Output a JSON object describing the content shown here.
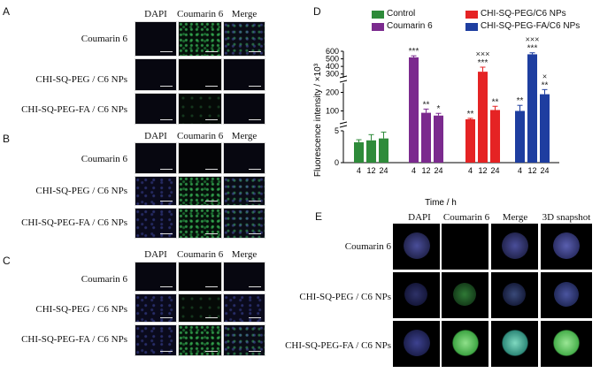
{
  "panels": {
    "A": {
      "letter": "A"
    },
    "B": {
      "letter": "B"
    },
    "C": {
      "letter": "C"
    },
    "D": {
      "letter": "D"
    },
    "E": {
      "letter": "E"
    }
  },
  "micro": {
    "col_headers": [
      "DAPI",
      "Coumarin 6",
      "Merge"
    ],
    "row_labels": [
      "Coumarin 6",
      "CHI-SQ-PEG / C6 NPs",
      "CHI-SQ-PEG-FA / C6 NPs"
    ]
  },
  "spheroid": {
    "col_headers": [
      "DAPI",
      "Coumarin 6",
      "Merge",
      "3D snapshot"
    ],
    "row_labels": [
      "Coumarin 6",
      "CHI-SQ-PEG / C6 NPs",
      "CHI-SQ-PEG-FA / C6 NPs"
    ]
  },
  "chart_data": {
    "type": "bar",
    "ylabel": "Fluorescence intensity / ×10³",
    "xlabel": "Time / h",
    "categories": [
      "4",
      "12",
      "24"
    ],
    "series": [
      {
        "name": "Control",
        "color": "#2e8b3a",
        "values": [
          3.2,
          3.5,
          3.8
        ],
        "errors": [
          0.4,
          0.9,
          1.0
        ],
        "sig": [
          "",
          "",
          ""
        ]
      },
      {
        "name": "Coumarin 6",
        "color": "#7b2a8e",
        "values": [
          520,
          90,
          75
        ],
        "errors": [
          20,
          20,
          12
        ],
        "sig": [
          "***",
          "**",
          "*"
        ]
      },
      {
        "name": "CHI-SQ-PEG/C6 NPs",
        "color": "#e52324",
        "values": [
          55,
          330,
          105
        ],
        "errors": [
          5,
          60,
          20
        ],
        "sig": [
          "**",
          "***",
          "**"
        ],
        "sig2": [
          "",
          "×××",
          ""
        ]
      },
      {
        "name": "CHI-SQ-PEG-FA/C6 NPs",
        "color": "#1e3ea0",
        "values": [
          100,
          560,
          190
        ],
        "errors": [
          30,
          20,
          25
        ],
        "sig": [
          "**",
          "***",
          "**"
        ],
        "sig2": [
          "",
          "×××",
          "×"
        ]
      }
    ],
    "y_ticks_low": [
      "0",
      "5"
    ],
    "y_ticks_mid": [
      "100",
      "200"
    ],
    "y_ticks_high": [
      "300",
      "400",
      "500",
      "600"
    ]
  }
}
